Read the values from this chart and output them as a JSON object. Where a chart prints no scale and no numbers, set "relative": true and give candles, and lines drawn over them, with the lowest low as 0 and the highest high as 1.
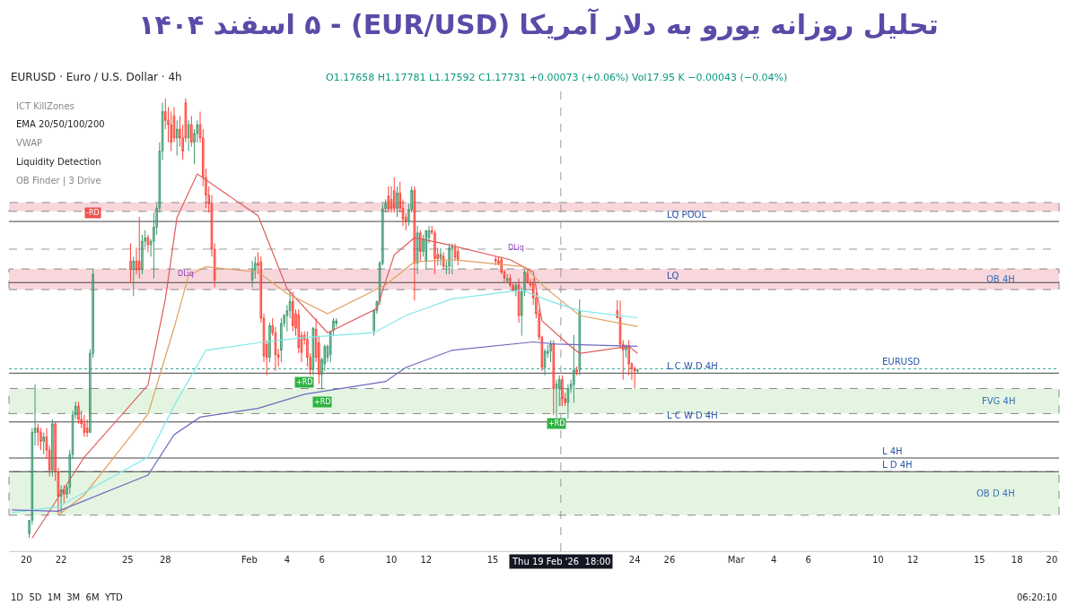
{
  "chart_data": {
    "type": "candlestick",
    "title": "تحلیل روزانه یورو به دلار آمریکا (EUR/USD) - ۵ اسفند ۱۴۰۴",
    "relative": true,
    "grid": false,
    "x": [
      "2026-01-20T04:00",
      "2026-01-20T08:00",
      "2026-01-20T12:00",
      "2026-01-20T16:00",
      "2026-01-20T20:00",
      "2026-01-21T00:00",
      "2026-01-21T04:00",
      "2026-01-21T08:00",
      "2026-01-21T12:00",
      "2026-01-21T16:00",
      "2026-01-21T20:00",
      "2026-01-22T00:00",
      "2026-01-22T04:00",
      "2026-01-22T08:00",
      "2026-01-22T12:00",
      "2026-01-22T16:00",
      "2026-01-22T20:00",
      "2026-01-23T00:00",
      "2026-01-23T04:00",
      "2026-01-23T08:00",
      "2026-01-23T12:00",
      "2026-01-23T16:00",
      "2026-01-23T20:00",
      "2026-01-26T00:00",
      "2026-01-26T04:00",
      "2026-01-26T08:00",
      "2026-01-26T12:00",
      "2026-01-26T16:00",
      "2026-01-26T20:00",
      "2026-01-27T00:00",
      "2026-01-27T04:00",
      "2026-01-27T08:00",
      "2026-01-27T12:00",
      "2026-01-27T16:00",
      "2026-01-27T20:00",
      "2026-01-28T00:00",
      "2026-01-28T04:00",
      "2026-01-28T08:00",
      "2026-01-28T12:00",
      "2026-01-28T16:00",
      "2026-01-28T20:00",
      "2026-01-29T00:00",
      "2026-01-29T04:00",
      "2026-01-29T08:00",
      "2026-01-29T12:00",
      "2026-01-29T16:00",
      "2026-01-29T20:00",
      "2026-01-30T00:00",
      "2026-01-30T04:00",
      "2026-01-30T08:00",
      "2026-01-30T12:00",
      "2026-01-30T16:00",
      "2026-01-30T20:00",
      "2026-02-02T00:00",
      "2026-02-02T04:00",
      "2026-02-02T08:00",
      "2026-02-02T12:00",
      "2026-02-02T16:00",
      "2026-02-02T20:00",
      "2026-02-03T00:00",
      "2026-02-03T04:00",
      "2026-02-03T08:00",
      "2026-02-03T12:00",
      "2026-02-03T16:00",
      "2026-02-03T20:00",
      "2026-02-04T00:00",
      "2026-02-04T04:00",
      "2026-02-04T08:00",
      "2026-02-04T12:00",
      "2026-02-04T16:00",
      "2026-02-04T20:00",
      "2026-02-05T00:00",
      "2026-02-05T04:00",
      "2026-02-05T08:00",
      "2026-02-05T12:00",
      "2026-02-05T16:00",
      "2026-02-05T20:00",
      "2026-02-06T00:00",
      "2026-02-06T04:00",
      "2026-02-06T08:00",
      "2026-02-06T12:00",
      "2026-02-06T16:00",
      "2026-02-06T20:00",
      "2026-02-09T00:00",
      "2026-02-09T04:00",
      "2026-02-09T08:00",
      "2026-02-09T12:00",
      "2026-02-09T16:00",
      "2026-02-09T20:00",
      "2026-02-10T00:00",
      "2026-02-10T04:00",
      "2026-02-10T08:00",
      "2026-02-10T12:00",
      "2026-02-10T16:00",
      "2026-02-10T20:00",
      "2026-02-11T00:00",
      "2026-02-11T04:00",
      "2026-02-11T08:00",
      "2026-02-11T12:00",
      "2026-02-11T16:00",
      "2026-02-11T20:00",
      "2026-02-12T00:00",
      "2026-02-12T04:00",
      "2026-02-12T08:00",
      "2026-02-12T12:00",
      "2026-02-12T16:00",
      "2026-02-12T20:00",
      "2026-02-13T00:00",
      "2026-02-13T04:00",
      "2026-02-13T08:00",
      "2026-02-13T12:00",
      "2026-02-13T16:00",
      "2026-02-13T20:00",
      "2026-02-16T00:00",
      "2026-02-16T04:00",
      "2026-02-16T08:00",
      "2026-02-16T12:00",
      "2026-02-16T16:00",
      "2026-02-16T20:00",
      "2026-02-17T00:00",
      "2026-02-17T04:00",
      "2026-02-17T08:00",
      "2026-02-17T12:00",
      "2026-02-17T16:00",
      "2026-02-17T20:00",
      "2026-02-18T00:00",
      "2026-02-18T04:00",
      "2026-02-18T08:00",
      "2026-02-18T12:00",
      "2026-02-18T16:00",
      "2026-02-18T20:00",
      "2026-02-19T00:00",
      "2026-02-19T04:00",
      "2026-02-19T08:00",
      "2026-02-19T12:00",
      "2026-02-19T16:00",
      "2026-02-19T20:00",
      "2026-02-20T00:00",
      "2026-02-20T04:00",
      "2026-02-20T08:00",
      "2026-02-20T12:00",
      "2026-02-20T16:00",
      "2026-02-20T20:00",
      "2026-02-23T00:00",
      "2026-02-23T04:00",
      "2026-02-23T08:00",
      "2026-02-23T12:00",
      "2026-02-23T16:00",
      "2026-02-23T20:00",
      "2026-02-24T00:00",
      "2026-02-24T04:00"
    ],
    "ohlc": [
      [
        0.01,
        0.04,
        0,
        0.04
      ],
      [
        0.04,
        0.25,
        0.03,
        0.24
      ],
      [
        0.24,
        0.35,
        0.21,
        0.25
      ],
      [
        0.25,
        0.26,
        0.21,
        0.24
      ],
      [
        0.24,
        0.25,
        0.2,
        0.22
      ],
      [
        0.22,
        0.24,
        0.19,
        0.23
      ],
      [
        0.23,
        0.25,
        0.18,
        0.2
      ],
      [
        0.2,
        0.21,
        0.14,
        0.155
      ],
      [
        0.155,
        0.27,
        0.14,
        0.26
      ],
      [
        0.26,
        0.265,
        0.13,
        0.15
      ],
      [
        0.15,
        0.16,
        0.055,
        0.095
      ],
      [
        0.095,
        0.12,
        0.055,
        0.11
      ],
      [
        0.11,
        0.12,
        0.08,
        0.1
      ],
      [
        0.1,
        0.12,
        0.09,
        0.115
      ],
      [
        0.115,
        0.2,
        0.1,
        0.19
      ],
      [
        0.19,
        0.29,
        0.18,
        0.28
      ],
      [
        0.28,
        0.31,
        0.27,
        0.3
      ],
      [
        0.3,
        0.31,
        0.26,
        0.27
      ],
      [
        0.27,
        0.29,
        0.25,
        0.26
      ],
      [
        0.26,
        0.28,
        0.23,
        0.24
      ],
      [
        0.25,
        0.27,
        0.23,
        0.24
      ],
      [
        0.24,
        0.43,
        0.24,
        0.42
      ],
      [
        0.42,
        0.61,
        0.41,
        0.6
      ],
      [
        0.63,
        0.67,
        0.58,
        0.61
      ],
      [
        0.61,
        0.64,
        0.55,
        0.63
      ],
      [
        0.63,
        0.66,
        0.6,
        0.61
      ],
      [
        0.63,
        0.73,
        0.59,
        0.61
      ],
      [
        0.61,
        0.69,
        0.6,
        0.675
      ],
      [
        0.675,
        0.7,
        0.66,
        0.683
      ],
      [
        0.683,
        0.69,
        0.65,
        0.667
      ],
      [
        0.667,
        0.68,
        0.64,
        0.675
      ],
      [
        0.675,
        0.74,
        0.59,
        0.707
      ],
      [
        0.707,
        0.76,
        0.69,
        0.75
      ],
      [
        0.75,
        0.9,
        0.74,
        0.88
      ],
      [
        0.88,
        0.99,
        0.86,
        0.97
      ],
      [
        0.97,
        1.0,
        0.93,
        0.95
      ],
      [
        0.95,
        0.98,
        0.9,
        0.94
      ],
      [
        0.94,
        0.97,
        0.88,
        0.9
      ],
      [
        0.96,
        0.98,
        0.9,
        0.91
      ],
      [
        0.91,
        0.95,
        0.87,
        0.93
      ],
      [
        0.93,
        0.96,
        0.89,
        0.91
      ],
      [
        0.91,
        0.94,
        0.86,
        0.88
      ],
      [
        0.99,
        1.0,
        0.9,
        0.91
      ],
      [
        0.91,
        0.95,
        0.88,
        0.94
      ],
      [
        0.94,
        0.96,
        0.89,
        0.9
      ],
      [
        0.9,
        0.93,
        0.85,
        0.92
      ],
      [
        0.92,
        0.95,
        0.9,
        0.94
      ],
      [
        0.94,
        0.97,
        0.9,
        0.91
      ],
      [
        0.91,
        0.93,
        0.8,
        0.82
      ],
      [
        0.82,
        0.84,
        0.75,
        0.78
      ],
      [
        0.78,
        0.8,
        0.74,
        0.76
      ],
      [
        0.76,
        0.78,
        0.64,
        0.657
      ],
      [
        0.657,
        0.67,
        0.57,
        0.586
      ],
      [
        0.586,
        0.63,
        0.57,
        0.61
      ],
      [
        0.61,
        0.64,
        0.59,
        0.625
      ],
      [
        0.625,
        0.65,
        0.6,
        0.62
      ],
      [
        0.628,
        0.64,
        0.49,
        0.5
      ],
      [
        0.5,
        0.51,
        0.4,
        0.414
      ],
      [
        0.44,
        0.45,
        0.37,
        0.411
      ],
      [
        0.411,
        0.49,
        0.4,
        0.483
      ],
      [
        0.483,
        0.5,
        0.46,
        0.467
      ],
      [
        0.467,
        0.48,
        0.38,
        0.417
      ],
      [
        0.417,
        0.43,
        0.39,
        0.411
      ],
      [
        0.427,
        0.5,
        0.4,
        0.488
      ],
      [
        0.488,
        0.51,
        0.48,
        0.506
      ],
      [
        0.506,
        0.53,
        0.47,
        0.517
      ],
      [
        0.517,
        0.56,
        0.5,
        0.538
      ],
      [
        0.538,
        0.56,
        0.47,
        0.483
      ],
      [
        0.51,
        0.52,
        0.46,
        0.477
      ],
      [
        0.507,
        0.52,
        0.42,
        0.433
      ],
      [
        0.461,
        0.47,
        0.4,
        0.422
      ],
      [
        0.461,
        0.47,
        0.44,
        0.452
      ],
      [
        0.452,
        0.47,
        0.39,
        0.411
      ],
      [
        0.411,
        0.42,
        0.37,
        0.383
      ],
      [
        0.383,
        0.48,
        0.37,
        0.477
      ],
      [
        0.475,
        0.5,
        0.4,
        0.411
      ],
      [
        0.444,
        0.46,
        0.35,
        0.372
      ],
      [
        0.372,
        0.41,
        0.338,
        0.406
      ],
      [
        0.396,
        0.44,
        0.38,
        0.436
      ],
      [
        0.411,
        0.44,
        0.4,
        0.436
      ],
      [
        0.417,
        0.47,
        0.4,
        0.469
      ],
      [
        0.472,
        0.5,
        0.46,
        0.494
      ],
      [
        0.488,
        0.5,
        0.48,
        0.494
      ],
      [
        0.472,
        0.52,
        0.46,
        0.517
      ],
      [
        0.517,
        0.54,
        0.51,
        0.538
      ],
      [
        0.538,
        0.63,
        0.53,
        0.625
      ],
      [
        0.625,
        0.76,
        0.62,
        0.749
      ],
      [
        0.749,
        0.77,
        0.74,
        0.76
      ],
      [
        0.778,
        0.8,
        0.74,
        0.749
      ],
      [
        0.77,
        0.8,
        0.74,
        0.75
      ],
      [
        0.79,
        0.82,
        0.74,
        0.75
      ],
      [
        0.75,
        0.8,
        0.73,
        0.785
      ],
      [
        0.785,
        0.81,
        0.74,
        0.75
      ],
      [
        0.75,
        0.77,
        0.71,
        0.725
      ],
      [
        0.73,
        0.74,
        0.7,
        0.72
      ],
      [
        0.72,
        0.76,
        0.71,
        0.747
      ],
      [
        0.747,
        0.8,
        0.74,
        0.791
      ],
      [
        0.791,
        0.8,
        0.54,
        0.625
      ],
      [
        0.625,
        0.71,
        0.6,
        0.694
      ],
      [
        0.694,
        0.7,
        0.63,
        0.652
      ],
      [
        0.652,
        0.69,
        0.64,
        0.68
      ],
      [
        0.63,
        0.7,
        0.61,
        0.699
      ],
      [
        0.683,
        0.71,
        0.67,
        0.699
      ],
      [
        0.699,
        0.71,
        0.69,
        0.695
      ],
      [
        0.694,
        0.7,
        0.6,
        0.636
      ],
      [
        0.645,
        0.66,
        0.62,
        0.636
      ],
      [
        0.636,
        0.66,
        0.62,
        0.645
      ],
      [
        0.641,
        0.65,
        0.61,
        0.618
      ],
      [
        0.617,
        0.63,
        0.6,
        0.618
      ],
      [
        0.618,
        0.67,
        0.6,
        0.66
      ],
      [
        0.66,
        0.67,
        0.6,
        0.662
      ],
      [
        0.66,
        0.67,
        0.63,
        0.638
      ],
      [
        0.652,
        0.66,
        0.62,
        0.634
      ],
      [
        0.634,
        0.64,
        0.62,
        0.63
      ],
      [
        0.63,
        0.64,
        0.62,
        0.625
      ],
      [
        0.633,
        0.64,
        0.6,
        0.605
      ],
      [
        0.605,
        0.61,
        0.58,
        0.591
      ],
      [
        0.585,
        0.6,
        0.58,
        0.59
      ],
      [
        0.591,
        0.6,
        0.57,
        0.575
      ],
      [
        0.575,
        0.58,
        0.56,
        0.564
      ],
      [
        0.564,
        0.58,
        0.55,
        0.575
      ],
      [
        0.576,
        0.59,
        0.49,
        0.506
      ],
      [
        0.506,
        0.57,
        0.46,
        0.56
      ],
      [
        0.56,
        0.61,
        0.55,
        0.605
      ],
      [
        0.602,
        0.61,
        0.58,
        0.581
      ],
      [
        0.581,
        0.59,
        0.57,
        0.575
      ],
      [
        0.578,
        0.59,
        0.53,
        0.546
      ],
      [
        0.546,
        0.56,
        0.5,
        0.51
      ],
      [
        0.51,
        0.52,
        0.45,
        0.457
      ],
      [
        0.457,
        0.46,
        0.38,
        0.388
      ],
      [
        0.388,
        0.43,
        0.37,
        0.425
      ],
      [
        0.42,
        0.44,
        0.41,
        0.425
      ],
      [
        0.425,
        0.45,
        0.4,
        0.441
      ],
      [
        0.441,
        0.45,
        0.28,
        0.34
      ],
      [
        0.34,
        0.36,
        0.275,
        0.35
      ],
      [
        0.34,
        0.37,
        0.3,
        0.361
      ],
      [
        0.361,
        0.37,
        0.3,
        0.317
      ],
      [
        0.317,
        0.33,
        0.3,
        0.308
      ],
      [
        0.308,
        0.35,
        0.272,
        0.34
      ],
      [
        0.34,
        0.36,
        0.33,
        0.35
      ],
      [
        0.349,
        0.462,
        0.308,
        0.382
      ],
      [
        0.382,
        0.39,
        0.37,
        0.378
      ],
      [
        0.382,
        0.543,
        0.37,
        0.517
      ],
      [
        0.517,
        0.541,
        0.5,
        0.501
      ],
      [
        0.501,
        0.54,
        0.43,
        0.441
      ],
      [
        0.441,
        0.45,
        0.36,
        0.428
      ],
      [
        0.428,
        0.44,
        0.41,
        0.435
      ],
      [
        0.438,
        0.45,
        0.37,
        0.396
      ],
      [
        0.396,
        0.4,
        0.36,
        0.385
      ],
      [
        0.385,
        0.39,
        0.34,
        0.38
      ],
      [
        0.38,
        0.385,
        0.375,
        0.382
      ]
    ],
    "series": [
      {
        "type": "line",
        "color": "#e05b5b",
        "x": [
          "2026-01-20T08:00",
          "2026-01-23T08:00",
          "2026-01-27T00:00",
          "2026-01-28T00:00",
          "2026-01-28T16:00",
          "2026-01-29T20:00",
          "2026-02-02T08:00",
          "2026-02-04T00:00",
          "2026-02-06T08:00",
          "2026-02-09T04:00",
          "2026-02-10T04:00",
          "2026-02-11T08:00",
          "2026-02-12T20:00",
          "2026-02-16T20:00",
          "2026-02-18T04:00",
          "2026-02-18T16:00",
          "2026-02-20T04:00",
          "2026-02-20T20:00",
          "2026-02-23T16:00",
          "2026-02-24T04:00"
        ],
        "values": [
          0.0,
          0.184,
          0.348,
          0.544,
          0.729,
          0.828,
          0.733,
          0.567,
          0.467,
          0.522,
          0.644,
          0.683,
          0.671,
          0.633,
          0.605,
          0.494,
          0.441,
          0.42,
          0.436,
          0.42
        ]
      },
      {
        "type": "line",
        "color": "#e0a060",
        "x": [
          "2026-01-21T20:00",
          "2026-01-23T08:00",
          "2026-01-27T00:00",
          "2026-01-28T12:00",
          "2026-01-29T08:00",
          "2026-01-30T08:00",
          "2026-02-02T08:00",
          "2026-02-04T00:00",
          "2026-02-06T08:00",
          "2026-02-09T16:00",
          "2026-02-11T08:00",
          "2026-02-13T12:00",
          "2026-02-17T16:00",
          "2026-02-18T20:00",
          "2026-02-20T20:00",
          "2026-02-24T04:00"
        ],
        "values": [
          0.052,
          0.098,
          0.282,
          0.478,
          0.597,
          0.617,
          0.605,
          0.556,
          0.51,
          0.576,
          0.628,
          0.633,
          0.617,
          0.57,
          0.506,
          0.481
        ]
      },
      {
        "type": "line",
        "color": "#80e8e8",
        "x": [
          "2026-01-19T04:00",
          "2026-01-21T20:00",
          "2026-01-27T00:00",
          "2026-01-28T12:00",
          "2026-01-30T08:00",
          "2026-02-02T16:00",
          "2026-02-05T00:00",
          "2026-02-09T00:00",
          "2026-02-10T20:00",
          "2026-02-13T12:00",
          "2026-02-17T12:00",
          "2026-02-19T04:00",
          "2026-02-20T20:00",
          "2026-02-24T04:00"
        ],
        "values": [
          0.058,
          0.071,
          0.184,
          0.301,
          0.427,
          0.446,
          0.456,
          0.467,
          0.506,
          0.544,
          0.564,
          0.538,
          0.517,
          0.501
        ]
      },
      {
        "type": "line",
        "color": "#7068c0",
        "x": [
          "2026-01-19T04:00",
          "2026-01-21T20:00",
          "2026-01-27T00:00",
          "2026-01-28T12:00",
          "2026-01-30T00:00",
          "2026-02-02T08:00",
          "2026-02-05T00:00",
          "2026-02-09T16:00",
          "2026-02-10T20:00",
          "2026-02-13T12:00",
          "2026-02-18T04:00",
          "2026-02-19T12:00",
          "2026-02-24T04:00"
        ],
        "values": [
          0.064,
          0.061,
          0.143,
          0.235,
          0.275,
          0.295,
          0.327,
          0.356,
          0.388,
          0.427,
          0.446,
          0.441,
          0.436
        ]
      }
    ],
    "xlim": [
      "2026-01-19T00:00",
      "2026-03-20T10:00"
    ],
    "xticks": [
      {
        "value": "2026-01-20",
        "label": "20"
      },
      {
        "value": "2026-01-22",
        "label": "22"
      },
      {
        "value": "2026-01-25T20:00",
        "label": "25"
      },
      {
        "value": "2026-01-28",
        "label": "28"
      },
      {
        "value": "2026-02-01T20:00",
        "label": "Feb"
      },
      {
        "value": "2026-02-04",
        "label": "4"
      },
      {
        "value": "2026-02-06",
        "label": "6"
      },
      {
        "value": "2026-02-10",
        "label": "10"
      },
      {
        "value": "2026-02-12",
        "label": "12"
      },
      {
        "value": "2026-02-15T20:00",
        "label": "15"
      },
      {
        "value": "2026-02-24",
        "label": "24"
      },
      {
        "value": "2026-02-26",
        "label": "26"
      },
      {
        "value": "2026-03-01T20:00",
        "label": "Mar"
      },
      {
        "value": "2026-03-04",
        "label": "4"
      },
      {
        "value": "2026-03-06",
        "label": "6"
      },
      {
        "value": "2026-03-10",
        "label": "10"
      },
      {
        "value": "2026-03-12",
        "label": "12"
      },
      {
        "value": "2026-03-15T20:00",
        "label": "15"
      },
      {
        "value": "2026-03-18",
        "label": "18"
      },
      {
        "value": "2026-03-20",
        "label": "20"
      }
    ],
    "ref_lines": [
      {
        "axis": "y",
        "value": 0.375,
        "label": "L C W D 4H",
        "color": "#444444"
      },
      {
        "axis": "y",
        "value": 0.385,
        "label": "EURUSD",
        "color": "#26a69a",
        "line_style": "dotted"
      },
      {
        "axis": "y",
        "value": 0.264,
        "label": "L C W D 4H",
        "color": "#444444"
      },
      {
        "axis": "y",
        "value": 0.182,
        "label": "L 4H",
        "color": "#444444"
      },
      {
        "axis": "y",
        "value": 0.72,
        "label": "LQ POOL",
        "color": "#444444"
      },
      {
        "axis": "y",
        "value": 0.151,
        "label": "L D 4H",
        "color": "#444444"
      },
      {
        "axis": "y",
        "value": 0.581,
        "label": "LQ",
        "color": "#444444"
      },
      {
        "axis": "y",
        "value": 0.657,
        "label": null,
        "color": "#999999",
        "line_style": "dashed"
      },
      {
        "axis": "x",
        "value": "2026-02-19T18:00",
        "label": "Thu 19 Feb '26  18:00",
        "color": "#999999",
        "line_style": "dashed"
      }
    ],
    "bands": [
      {
        "axis": "y",
        "from": 0.565,
        "to": 0.612,
        "label": "OB 4H",
        "color": "#f8d7dc"
      },
      {
        "axis": "y",
        "from": 0.743,
        "to": 0.763,
        "label": null,
        "color": "#f8d7dc"
      },
      {
        "axis": "y",
        "from": 0.283,
        "to": 0.34,
        "label": "FVG 4H",
        "color": "#e3f5e1"
      },
      {
        "axis": "y",
        "from": 0.052,
        "to": 0.151,
        "label": "OB D 4H",
        "color": "#e3f5e1"
      }
    ],
    "annotations": [
      "EURUSD · Euro / U.S. Dollar · 4h",
      "O1.17658 H1.17781 L1.17592 C1.17731 +0.00073 (+0.06%) Vol17.95 K −0.00043 (−0.04%)",
      "ICT KillZones",
      "EMA 20/50/100/200",
      "VWAP",
      "Liquidity Detection",
      "OB Finder | 3 Drive",
      "1D  5D  1M  3M  6M  YTD",
      "06:20:10",
      {
        "text": "+RD",
        "x": "2026-02-05T00:00",
        "y": 0.355
      },
      {
        "text": "+RD",
        "x": "2026-02-06T00:00",
        "y": 0.31
      },
      {
        "text": "+RD",
        "x": "2026-02-19T12:00",
        "y": 0.26
      },
      {
        "text": "-RD",
        "x": "2026-01-23T20:00",
        "y": 0.74
      },
      {
        "text": "DLiq",
        "x": "2026-01-29T04:00",
        "y": 0.6
      },
      {
        "text": "DLiq",
        "x": "2026-02-17T04:00",
        "y": 0.66
      }
    ]
  }
}
